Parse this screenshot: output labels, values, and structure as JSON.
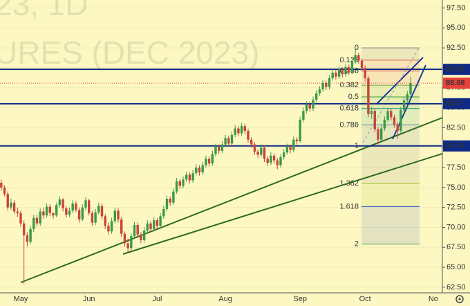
{
  "chart_data": {
    "type": "candlestick",
    "watermark": [
      "23, 1D",
      "URES (DEC 2023)"
    ],
    "categories": [
      null,
      null,
      null,
      null,
      null,
      null,
      "May",
      null,
      null,
      null,
      null,
      null,
      null,
      null,
      null,
      null,
      null,
      null,
      null,
      null,
      null,
      null,
      null,
      null,
      null,
      null,
      null,
      "Jun",
      null,
      null,
      null,
      null,
      null,
      null,
      null,
      null,
      null,
      null,
      null,
      null,
      null,
      null,
      null,
      null,
      null,
      null,
      null,
      null,
      "Jul",
      null,
      null,
      null,
      null,
      null,
      null,
      null,
      null,
      null,
      null,
      null,
      null,
      null,
      null,
      null,
      null,
      null,
      null,
      null,
      null,
      "Aug",
      null,
      null,
      null,
      null,
      null,
      null,
      null,
      null,
      null,
      null,
      null,
      null,
      null,
      null,
      null,
      null,
      null,
      null,
      null,
      null,
      null,
      null,
      "Sep",
      null,
      null,
      null,
      null,
      null,
      null,
      null,
      null,
      null,
      null,
      null,
      null,
      null,
      null,
      null,
      null,
      null,
      null,
      null,
      "Oct",
      null,
      null,
      null,
      null,
      null,
      null,
      null,
      null,
      null,
      null,
      null,
      null,
      null,
      null,
      null,
      null,
      null,
      null,
      null,
      null,
      "No"
    ],
    "ohlc": [
      [
        75.6,
        76.0,
        74.6,
        75.0
      ],
      [
        75.0,
        75.3,
        73.9,
        74.2
      ],
      [
        74.2,
        74.5,
        72.1,
        72.5
      ],
      [
        72.5,
        73.6,
        72.2,
        73.1
      ],
      [
        73.1,
        73.4,
        71.7,
        72.0
      ],
      [
        72.0,
        72.5,
        71.3,
        71.8
      ],
      [
        71.8,
        72.1,
        70.1,
        70.5
      ],
      [
        70.5,
        70.9,
        62.9,
        69.0
      ],
      [
        69.0,
        69.4,
        67.6,
        68.2
      ],
      [
        68.2,
        70.2,
        67.9,
        69.8
      ],
      [
        69.8,
        71.6,
        69.4,
        71.2
      ],
      [
        71.2,
        71.6,
        70.1,
        70.5
      ],
      [
        70.5,
        72.4,
        70.2,
        72.0
      ],
      [
        72.0,
        72.5,
        71.1,
        71.5
      ],
      [
        71.5,
        73.0,
        71.2,
        72.6
      ],
      [
        72.6,
        72.9,
        71.4,
        71.8
      ],
      [
        71.8,
        71.9,
        71.1,
        71.5
      ],
      [
        71.5,
        73.1,
        71.3,
        72.8
      ],
      [
        72.8,
        73.9,
        72.5,
        73.5
      ],
      [
        73.5,
        73.7,
        72.0,
        72.4
      ],
      [
        72.4,
        72.7,
        71.2,
        71.6
      ],
      [
        71.6,
        72.5,
        71.3,
        72.1
      ],
      [
        72.1,
        73.4,
        71.8,
        73.0
      ],
      [
        73.0,
        73.3,
        71.9,
        72.2
      ],
      [
        72.2,
        72.5,
        70.6,
        71.0
      ],
      [
        71.0,
        72.9,
        70.8,
        72.5
      ],
      [
        72.5,
        73.8,
        72.2,
        73.4
      ],
      [
        73.4,
        73.6,
        71.5,
        71.8
      ],
      [
        71.8,
        72.1,
        70.2,
        70.6
      ],
      [
        70.6,
        72.3,
        70.3,
        71.9
      ],
      [
        71.9,
        73.1,
        71.6,
        72.7
      ],
      [
        72.7,
        73.0,
        71.0,
        71.4
      ],
      [
        71.4,
        71.7,
        69.8,
        70.2
      ],
      [
        70.2,
        70.6,
        69.1,
        69.5
      ],
      [
        69.5,
        71.2,
        69.2,
        70.8
      ],
      [
        70.8,
        72.5,
        70.5,
        72.1
      ],
      [
        72.1,
        72.4,
        70.6,
        71.0
      ],
      [
        71.0,
        71.3,
        68.8,
        69.2
      ],
      [
        69.2,
        69.5,
        67.6,
        68.0
      ],
      [
        68.0,
        68.6,
        66.9,
        67.4
      ],
      [
        67.4,
        69.3,
        67.1,
        68.9
      ],
      [
        68.9,
        70.7,
        68.6,
        70.3
      ],
      [
        70.3,
        70.6,
        68.7,
        69.1
      ],
      [
        69.1,
        69.4,
        68.0,
        68.4
      ],
      [
        68.4,
        70.0,
        68.1,
        69.6
      ],
      [
        69.6,
        70.9,
        69.3,
        70.5
      ],
      [
        70.5,
        70.8,
        69.4,
        69.8
      ],
      [
        69.8,
        71.3,
        69.5,
        70.9
      ],
      [
        70.9,
        71.2,
        69.8,
        70.2
      ],
      [
        70.2,
        71.8,
        69.9,
        71.4
      ],
      [
        71.4,
        72.7,
        71.1,
        72.3
      ],
      [
        72.3,
        74.0,
        72.0,
        73.6
      ],
      [
        73.6,
        73.9,
        72.7,
        73.1
      ],
      [
        73.1,
        74.9,
        72.8,
        74.5
      ],
      [
        74.5,
        76.2,
        74.2,
        75.8
      ],
      [
        75.8,
        76.1,
        74.8,
        75.2
      ],
      [
        75.2,
        76.4,
        74.9,
        76.0
      ],
      [
        76.0,
        77.0,
        75.7,
        76.6
      ],
      [
        76.6,
        76.9,
        75.5,
        75.9
      ],
      [
        75.9,
        77.2,
        75.6,
        76.8
      ],
      [
        76.8,
        77.9,
        76.5,
        77.5
      ],
      [
        77.5,
        77.8,
        76.5,
        76.9
      ],
      [
        76.9,
        78.2,
        76.6,
        77.8
      ],
      [
        77.8,
        79.0,
        77.5,
        78.6
      ],
      [
        78.6,
        78.9,
        77.6,
        78.0
      ],
      [
        78.0,
        79.6,
        77.7,
        79.2
      ],
      [
        79.2,
        80.5,
        78.9,
        80.1
      ],
      [
        80.1,
        80.4,
        79.2,
        79.6
      ],
      [
        79.6,
        80.8,
        79.3,
        80.4
      ],
      [
        80.4,
        81.6,
        80.1,
        81.2
      ],
      [
        81.2,
        81.5,
        80.1,
        80.5
      ],
      [
        80.5,
        82.0,
        80.2,
        81.6
      ],
      [
        81.6,
        82.8,
        81.3,
        82.4
      ],
      [
        82.4,
        82.7,
        81.4,
        81.8
      ],
      [
        81.8,
        83.1,
        81.5,
        82.7
      ],
      [
        82.7,
        83.0,
        81.7,
        82.1
      ],
      [
        82.1,
        82.4,
        80.6,
        81.0
      ],
      [
        81.0,
        81.3,
        80.0,
        80.4
      ],
      [
        80.4,
        80.7,
        79.1,
        79.5
      ],
      [
        79.5,
        79.8,
        78.7,
        79.1
      ],
      [
        79.1,
        80.4,
        78.8,
        80.0
      ],
      [
        80.0,
        80.3,
        78.2,
        78.6
      ],
      [
        78.6,
        78.9,
        77.7,
        78.1
      ],
      [
        78.1,
        79.4,
        77.8,
        79.0
      ],
      [
        79.0,
        79.3,
        78.0,
        78.4
      ],
      [
        78.4,
        78.7,
        77.3,
        77.8
      ],
      [
        77.8,
        79.2,
        77.5,
        78.8
      ],
      [
        78.8,
        79.8,
        78.5,
        79.4
      ],
      [
        79.4,
        80.5,
        79.1,
        80.1
      ],
      [
        80.1,
        80.4,
        79.3,
        79.7
      ],
      [
        79.7,
        81.4,
        79.4,
        81.0
      ],
      [
        81.0,
        81.3,
        80.4,
        80.8
      ],
      [
        80.8,
        83.9,
        80.6,
        83.5
      ],
      [
        83.5,
        85.0,
        83.2,
        84.6
      ],
      [
        84.6,
        85.8,
        84.3,
        85.4
      ],
      [
        85.4,
        85.7,
        84.5,
        84.9
      ],
      [
        84.9,
        86.4,
        84.6,
        86.0
      ],
      [
        86.0,
        87.2,
        85.7,
        86.8
      ],
      [
        86.8,
        87.7,
        86.5,
        87.3
      ],
      [
        87.3,
        88.5,
        87.0,
        88.1
      ],
      [
        88.1,
        88.4,
        87.2,
        87.6
      ],
      [
        87.6,
        89.1,
        87.3,
        88.7
      ],
      [
        88.7,
        89.8,
        88.4,
        89.4
      ],
      [
        89.4,
        89.7,
        88.5,
        88.9
      ],
      [
        88.9,
        90.2,
        88.6,
        89.8
      ],
      [
        89.8,
        90.1,
        88.8,
        89.2
      ],
      [
        89.2,
        90.5,
        88.9,
        90.1
      ],
      [
        90.1,
        90.4,
        89.1,
        89.5
      ],
      [
        89.5,
        91.2,
        89.2,
        90.8
      ],
      [
        90.8,
        92.4,
        90.5,
        91.6
      ],
      [
        91.6,
        91.9,
        90.5,
        90.9
      ],
      [
        90.9,
        91.2,
        89.6,
        90.0
      ],
      [
        90.0,
        90.3,
        88.3,
        88.7
      ],
      [
        88.7,
        89.0,
        83.8,
        84.2
      ],
      [
        84.2,
        85.1,
        83.6,
        84.6
      ],
      [
        84.6,
        84.9,
        81.9,
        82.3
      ],
      [
        82.3,
        82.6,
        80.4,
        81.0
      ],
      [
        81.0,
        82.8,
        80.7,
        82.4
      ],
      [
        82.4,
        83.9,
        82.1,
        83.5
      ],
      [
        83.5,
        85.0,
        83.2,
        84.6
      ],
      [
        84.6,
        84.9,
        83.4,
        83.8
      ],
      [
        83.8,
        84.1,
        82.5,
        82.9
      ],
      [
        82.9,
        83.2,
        81.1,
        82.1
      ],
      [
        82.1,
        85.1,
        81.8,
        84.7
      ],
      [
        84.7,
        86.3,
        84.4,
        85.9
      ],
      [
        85.9,
        87.1,
        85.6,
        86.7
      ],
      [
        86.7,
        88.9,
        86.4,
        88.08
      ],
      null,
      null,
      null,
      null,
      null,
      null,
      null,
      null
    ],
    "up_color": "#3a9a4a",
    "down_color": "#c8443c",
    "ylim": [
      61.8,
      98.5
    ],
    "yticks": [
      {
        "value": 62.5,
        "label": "62.50"
      },
      {
        "value": 65,
        "label": "65.00"
      },
      {
        "value": 67.5,
        "label": "67.50"
      },
      {
        "value": 70,
        "label": "70.00"
      },
      {
        "value": 72.5,
        "label": "72.50"
      },
      {
        "value": 75,
        "label": "75.00"
      },
      {
        "value": 77.5,
        "label": "77.50"
      },
      {
        "value": 80,
        "label": "80.00"
      },
      {
        "value": 82.5,
        "label": "82.50"
      },
      {
        "value": 85,
        "label": "85.00"
      },
      {
        "value": 87.5,
        "label": "87.50"
      },
      {
        "value": 90,
        "label": "90.00"
      },
      {
        "value": 92.5,
        "label": "92.50"
      },
      {
        "value": 95,
        "label": "95.00"
      },
      {
        "value": 97.5,
        "label": "97.50"
      }
    ],
    "grid": true,
    "price_lines": [
      {
        "value": 89.81,
        "color": "#0f2a86"
      },
      {
        "value": 85.5,
        "color": "#0f2a86"
      },
      {
        "value": 80.21,
        "color": "#0f2a86"
      }
    ],
    "last_price_color": "#e8403a",
    "fib": {
      "high": 92.5,
      "low": 80.21,
      "levels": [
        {
          "level": 0,
          "color": "#787b86"
        },
        {
          "level": 0.125,
          "color": "#e25b5b"
        },
        {
          "level": 0.236,
          "color": "#e25b5b"
        },
        {
          "level": 0.382,
          "color": "#6ab04c"
        },
        {
          "level": 0.5,
          "color": "#3d9f3d"
        },
        {
          "level": 0.618,
          "color": "#0f9a7a"
        },
        {
          "level": 0.786,
          "color": "#4a74a8"
        },
        {
          "level": 1,
          "color": "#787b86"
        },
        {
          "level": 1.382,
          "color": "#9bbf2a"
        },
        {
          "level": 1.618,
          "color": "#2a55c8"
        },
        {
          "level": 2,
          "color": "#3d9f3d"
        }
      ]
    }
  }
}
